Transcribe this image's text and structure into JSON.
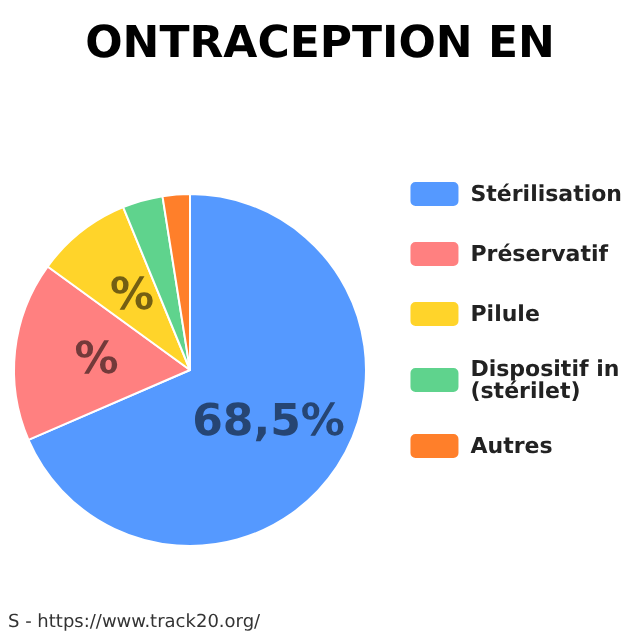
{
  "chart_data": {
    "type": "pie",
    "title": "ONTRACEPTION EN",
    "categories": [
      "Stérilisation",
      "Préservatif",
      "Pilule",
      "Dispositif in\n(stérilet)",
      "Autres"
    ],
    "values": [
      68.5,
      16.5,
      8.8,
      3.7,
      2.5
    ],
    "colors": [
      "#5599ff",
      "#ff8080",
      "#ffd42a",
      "#5fd38d",
      "#ff7f2a"
    ],
    "value_labels": [
      "68,5%",
      "%",
      "%",
      null,
      null
    ],
    "legend": "right",
    "annotations": [
      "S - https://www.track20.org/"
    ]
  }
}
